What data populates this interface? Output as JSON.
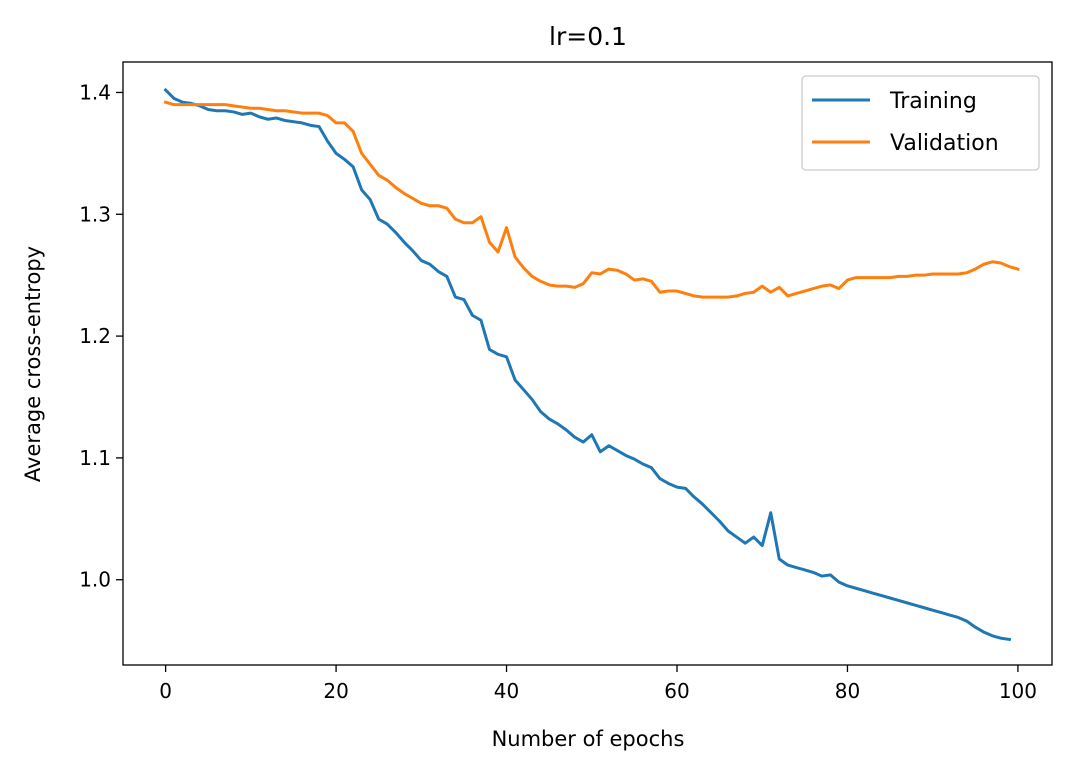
{
  "chart_data": {
    "type": "line",
    "title": "lr=0.1",
    "xlabel": "Number of epochs",
    "ylabel": "Average cross-entropy",
    "xlim": [
      -5,
      104
    ],
    "ylim": [
      0.93,
      1.425
    ],
    "xticks": [
      0,
      20,
      40,
      60,
      80,
      100
    ],
    "yticks": [
      1.0,
      1.1,
      1.2,
      1.3,
      1.4
    ],
    "grid": false,
    "legend_position": "top-right",
    "series": [
      {
        "name": "Training",
        "color": "#1f77b4",
        "values": [
          1.402,
          1.395,
          1.392,
          1.391,
          1.389,
          1.386,
          1.385,
          1.385,
          1.384,
          1.382,
          1.383,
          1.38,
          1.378,
          1.379,
          1.377,
          1.376,
          1.375,
          1.373,
          1.372,
          1.36,
          1.35,
          1.345,
          1.339,
          1.32,
          1.312,
          1.296,
          1.292,
          1.285,
          1.277,
          1.27,
          1.262,
          1.259,
          1.253,
          1.249,
          1.232,
          1.23,
          1.217,
          1.213,
          1.189,
          1.185,
          1.183,
          1.164,
          1.156,
          1.148,
          1.138,
          1.132,
          1.128,
          1.123,
          1.117,
          1.113,
          1.119,
          1.105,
          1.11,
          1.106,
          1.102,
          1.099,
          1.095,
          1.092,
          1.083,
          1.079,
          1.076,
          1.075,
          1.068,
          1.062,
          1.055,
          1.048,
          1.04,
          1.035,
          1.03,
          1.035,
          1.028,
          1.055,
          1.017,
          1.012,
          1.01,
          1.008,
          1.006,
          1.003,
          1.004,
          0.998,
          0.995,
          0.993,
          0.991,
          0.989,
          0.987,
          0.985,
          0.983,
          0.981,
          0.979,
          0.977,
          0.975,
          0.973,
          0.971,
          0.969,
          0.966,
          0.961,
          0.957,
          0.954,
          0.952,
          0.951
        ]
      },
      {
        "name": "Validation",
        "color": "#ff7f0e",
        "values": [
          1.392,
          1.39,
          1.39,
          1.39,
          1.39,
          1.39,
          1.39,
          1.39,
          1.389,
          1.388,
          1.387,
          1.387,
          1.386,
          1.385,
          1.385,
          1.384,
          1.383,
          1.383,
          1.383,
          1.381,
          1.375,
          1.375,
          1.368,
          1.35,
          1.341,
          1.332,
          1.328,
          1.322,
          1.317,
          1.313,
          1.309,
          1.307,
          1.307,
          1.305,
          1.296,
          1.293,
          1.293,
          1.298,
          1.277,
          1.269,
          1.289,
          1.265,
          1.256,
          1.249,
          1.245,
          1.242,
          1.241,
          1.241,
          1.24,
          1.243,
          1.252,
          1.251,
          1.255,
          1.254,
          1.251,
          1.246,
          1.247,
          1.245,
          1.236,
          1.237,
          1.237,
          1.235,
          1.233,
          1.232,
          1.232,
          1.232,
          1.232,
          1.233,
          1.235,
          1.236,
          1.241,
          1.236,
          1.24,
          1.233,
          1.235,
          1.237,
          1.239,
          1.241,
          1.242,
          1.239,
          1.246,
          1.248,
          1.248,
          1.248,
          1.248,
          1.248,
          1.249,
          1.249,
          1.25,
          1.25,
          1.251,
          1.251,
          1.251,
          1.251,
          1.252,
          1.255,
          1.259,
          1.261,
          1.26,
          1.257,
          1.255
        ]
      }
    ]
  }
}
